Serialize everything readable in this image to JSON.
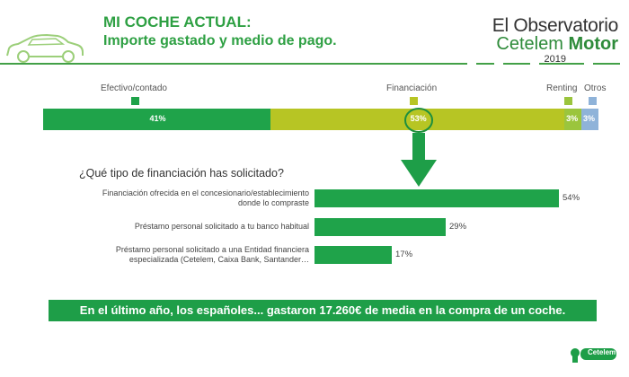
{
  "header": {
    "title": "MI COCHE ACTUAL:",
    "subtitle": "Importe gastado y medio de pago."
  },
  "brand": {
    "line1": "El Observatorio",
    "line2a": "Cetelem",
    "line2b": "Motor",
    "year": "2019"
  },
  "colors": {
    "efectivo": "#1fa34a",
    "financiacion": "#b7c524",
    "renting": "#9bc53d",
    "otros": "#8fb3d9",
    "accent": "#2ea043"
  },
  "chart_data": [
    {
      "type": "bar",
      "orientation": "stacked-horizontal",
      "categories": [
        "Efectivo/contado",
        "Financiación",
        "Renting",
        "Otros"
      ],
      "values": [
        41,
        53,
        3,
        3
      ],
      "labels": [
        "41%",
        "53%",
        "3%",
        "3%"
      ],
      "unit": "%"
    },
    {
      "type": "bar",
      "orientation": "horizontal",
      "title": "¿Qué tipo de financiación has solicitado?",
      "categories": [
        [
          "Financiación ofrecida en el concesionario/establecimiento",
          "donde lo compraste"
        ],
        [
          "Préstamo personal solicitado a tu banco habitual"
        ],
        [
          "Préstamo personal solicitado a una Entidad financiera",
          "especializada (Cetelem, Caixa Bank, Santander…"
        ]
      ],
      "values": [
        54,
        29,
        17
      ],
      "labels": [
        "54%",
        "29%",
        "17%"
      ],
      "xlim": [
        0,
        54
      ],
      "unit": "%"
    }
  ],
  "footer": {
    "banner": "En el último año, los españoles... gastaron 17.260€  de media en la compra de un coche.",
    "logo": "Cetelem"
  }
}
